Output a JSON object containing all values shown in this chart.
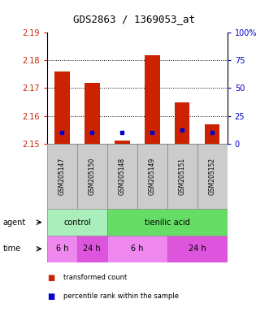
{
  "title": "GDS2863 / 1369053_at",
  "samples": [
    "GSM205147",
    "GSM205150",
    "GSM205148",
    "GSM205149",
    "GSM205151",
    "GSM205152"
  ],
  "bar_tops": [
    2.176,
    2.172,
    2.151,
    2.182,
    2.165,
    2.157
  ],
  "bar_bottom": 2.15,
  "blue_vals": [
    2.154,
    2.154,
    2.154,
    2.154,
    2.155,
    2.154
  ],
  "ylim": [
    2.15,
    2.19
  ],
  "yticks_left": [
    2.15,
    2.16,
    2.17,
    2.18,
    2.19
  ],
  "yticks_right_labels": [
    "0",
    "25",
    "50",
    "75",
    "100%"
  ],
  "yticks_right_vals": [
    2.15,
    2.16,
    2.17,
    2.18,
    2.19
  ],
  "bar_color": "#cc2200",
  "blue_color": "#0000cc",
  "left_tick_color": "#cc2200",
  "right_tick_color": "#0000cc",
  "agent_groups": [
    {
      "label": "control",
      "start": 0,
      "end": 2,
      "color": "#aaeebb"
    },
    {
      "label": "tienilic acid",
      "start": 2,
      "end": 6,
      "color": "#66dd66"
    }
  ],
  "time_groups": [
    {
      "label": "6 h",
      "start": 0,
      "end": 1,
      "color": "#ee88ee"
    },
    {
      "label": "24 h",
      "start": 1,
      "end": 2,
      "color": "#dd55dd"
    },
    {
      "label": "6 h",
      "start": 2,
      "end": 4,
      "color": "#ee88ee"
    },
    {
      "label": "24 h",
      "start": 4,
      "end": 6,
      "color": "#dd55dd"
    }
  ],
  "legend_red_label": "transformed count",
  "legend_blue_label": "percentile rank within the sample",
  "agent_label": "agent",
  "time_label": "time",
  "sample_bg": "#cccccc",
  "grid_color": "black",
  "grid_linestyle": ":",
  "grid_linewidth": 0.7
}
